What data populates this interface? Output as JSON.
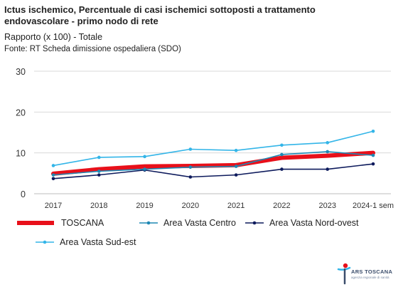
{
  "header": {
    "title": "Ictus ischemico, Percentuale di casi ischemici sottoposti a trattamento endovascolare - primo nodo di rete",
    "subtitle": "Rapporto (x 100) - Totale",
    "source": "Fonte: RT Scheda dimissione ospedaliera (SDO)"
  },
  "chart_data": {
    "type": "line",
    "categories": [
      "2017",
      "2018",
      "2019",
      "2020",
      "2021",
      "2022",
      "2023",
      "2024-1 sem"
    ],
    "ylim": [
      0,
      30
    ],
    "yticks": [
      0,
      10,
      20,
      30
    ],
    "grid": true,
    "legend_position": "bottom",
    "series": [
      {
        "name": "TOSCANA",
        "color": "#e8101a",
        "values": [
          4.9,
          6.0,
          6.7,
          6.8,
          7.0,
          8.8,
          9.3,
          10.0
        ]
      },
      {
        "name": "Area Vasta Centro",
        "color": "#1e88b4",
        "values": [
          4.6,
          5.5,
          6.0,
          6.5,
          6.7,
          9.6,
          10.3,
          9.4
        ]
      },
      {
        "name": "Area Vasta Nord-ovest",
        "color": "#0d1a5c",
        "values": [
          3.7,
          4.6,
          5.8,
          4.1,
          4.6,
          6.0,
          6.0,
          7.3
        ]
      },
      {
        "name": "Area Vasta Sud-est",
        "color": "#33b5e8",
        "values": [
          6.9,
          8.9,
          9.1,
          10.9,
          10.6,
          11.9,
          12.5,
          15.3
        ]
      }
    ]
  },
  "logo": {
    "name": "ARS TOSCANA",
    "tagline": "agenzia regionale di sanità"
  }
}
